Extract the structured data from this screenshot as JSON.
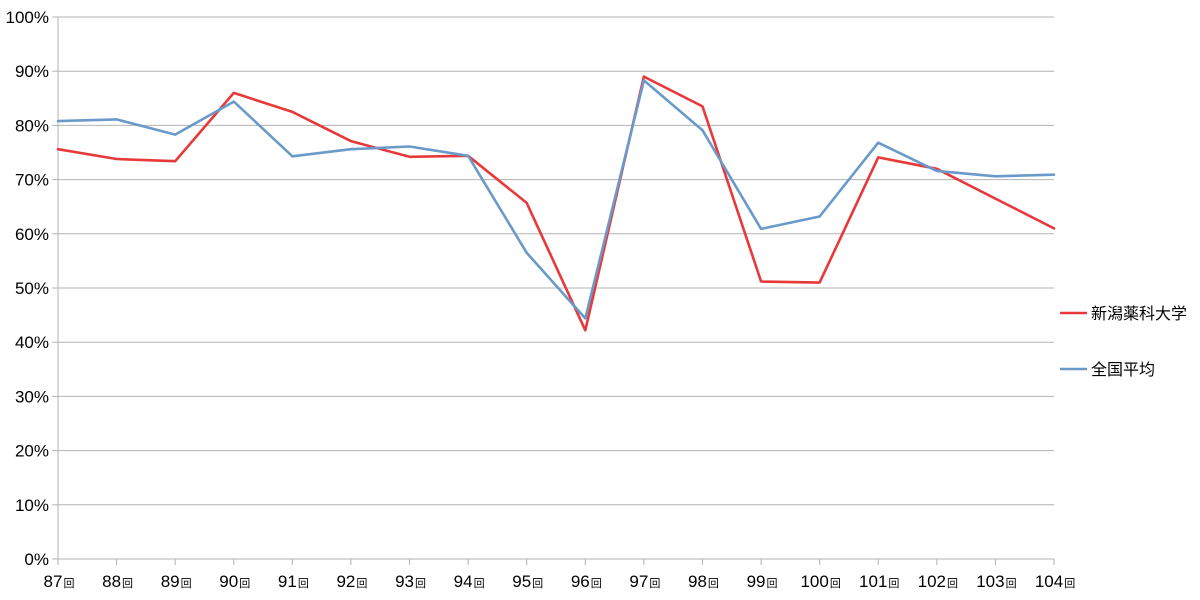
{
  "chart_data": {
    "type": "line",
    "categories": [
      "87",
      "88",
      "89",
      "90",
      "91",
      "92",
      "93",
      "94",
      "95",
      "96",
      "97",
      "98",
      "99",
      "100",
      "101",
      "102",
      "103",
      "104"
    ],
    "category_suffix": "回",
    "series": [
      {
        "name": "新潟薬科大学",
        "color": "#e8393a",
        "values": [
          75.6,
          73.8,
          73.4,
          86.0,
          82.5,
          77.1,
          74.2,
          74.4,
          65.7,
          42.2,
          89.0,
          83.5,
          51.2,
          51.0,
          74.1,
          72.0,
          66.5,
          61.0
        ]
      },
      {
        "name": "全国平均",
        "color": "#6a9ac9",
        "values": [
          80.8,
          81.1,
          78.3,
          84.4,
          74.3,
          75.6,
          76.1,
          74.4,
          56.5,
          44.4,
          88.3,
          79.1,
          60.9,
          63.2,
          76.8,
          71.6,
          70.6,
          70.9
        ]
      }
    ],
    "y_ticks": [
      "0%",
      "10%",
      "20%",
      "30%",
      "40%",
      "50%",
      "60%",
      "70%",
      "80%",
      "90%",
      "100%"
    ],
    "ylim": [
      0,
      100
    ],
    "grid": "horizontal",
    "legend": "right",
    "title": "",
    "xlabel": "",
    "ylabel": ""
  }
}
